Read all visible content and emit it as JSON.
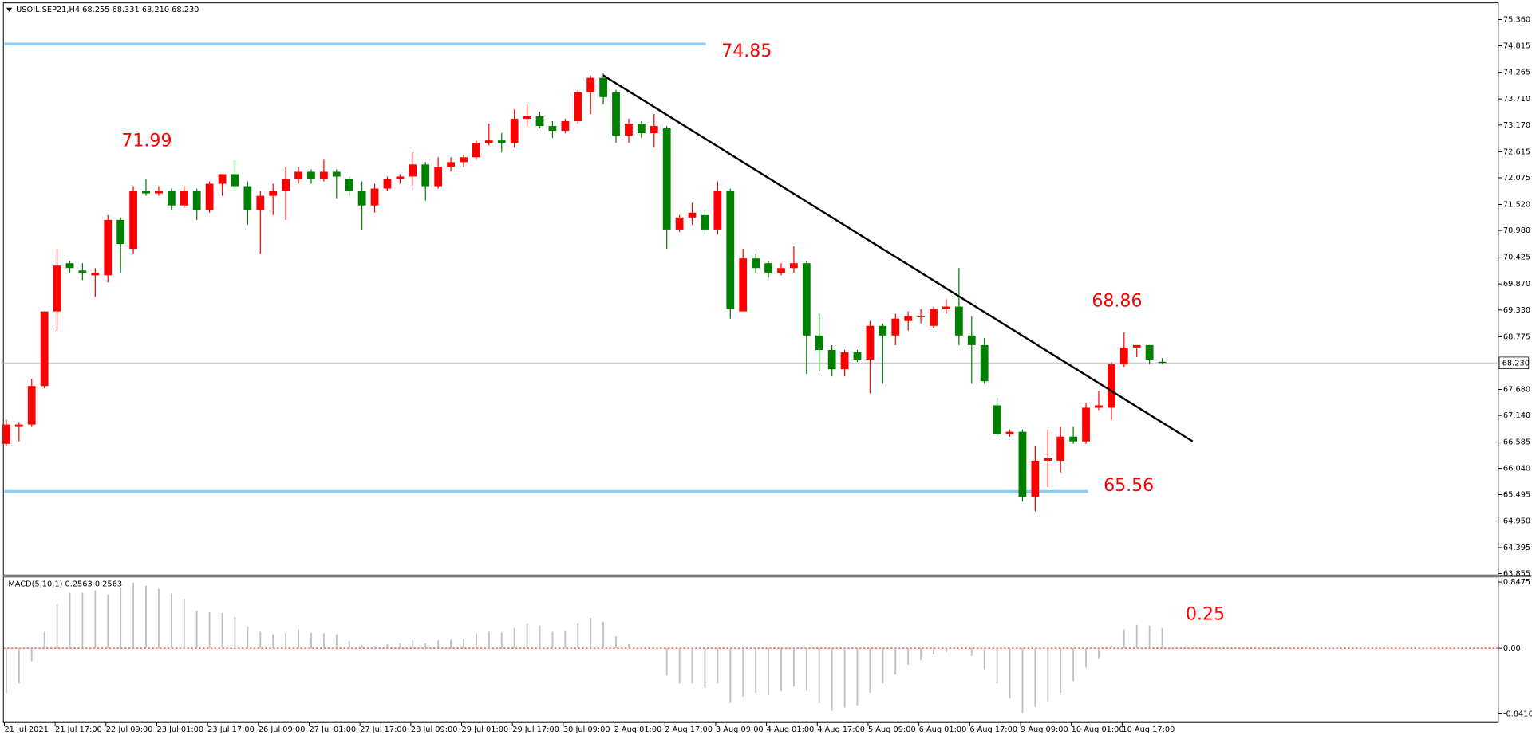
{
  "chart_data": [
    {
      "type": "candlestick",
      "title": "USOIL.SEP21,H4 68.255 68.331 68.210 68.230",
      "categories": [
        "21 Jul 2021",
        null,
        null,
        null,
        "21 Jul 17:00",
        null,
        null,
        null,
        "22 Jul 09:00",
        null,
        null,
        null,
        "23 Jul 01:00",
        null,
        null,
        null,
        "23 Jul 17:00",
        null,
        null,
        null,
        "26 Jul 09:00",
        null,
        null,
        null,
        "27 Jul 01:00",
        null,
        null,
        null,
        "27 Jul 17:00",
        null,
        null,
        null,
        "28 Jul 09:00",
        null,
        null,
        null,
        "29 Jul 01:00",
        null,
        null,
        null,
        "29 Jul 17:00",
        null,
        null,
        null,
        "30 Jul 09:00",
        null,
        null,
        null,
        "2 Aug 01:00",
        null,
        null,
        null,
        "2 Aug 17:00",
        null,
        null,
        null,
        "3 Aug 09:00",
        null,
        null,
        null,
        "4 Aug 01:00",
        null,
        null,
        null,
        "4 Aug 17:00",
        null,
        null,
        null,
        "5 Aug 09:00",
        null,
        null,
        null,
        "6 Aug 01:00",
        null,
        null,
        null,
        "6 Aug 17:00",
        null,
        null,
        null,
        "9 Aug 09:00",
        null,
        null,
        null,
        "10 Aug 01:00",
        null,
        null,
        null,
        "10 Aug 17:00",
        null,
        null,
        null
      ],
      "open": [
        66.55,
        66.9,
        66.95,
        67.75,
        69.3,
        70.3,
        70.15,
        70.05,
        70.05,
        71.2,
        70.6,
        71.8,
        71.75,
        71.8,
        71.5,
        71.8,
        71.4,
        71.95,
        72.15,
        71.9,
        71.4,
        71.7,
        71.8,
        72.05,
        72.2,
        72.05,
        72.2,
        72.05,
        71.8,
        71.5,
        71.85,
        72.05,
        72.1,
        72.35,
        71.9,
        72.3,
        72.4,
        72.5,
        72.8,
        72.85,
        72.8,
        73.3,
        73.35,
        73.15,
        73.05,
        73.25,
        73.85,
        74.15,
        73.85,
        72.95,
        73.2,
        73.0,
        73.1,
        71.0,
        71.25,
        71.3,
        71.0,
        71.8,
        69.3,
        70.4,
        70.3,
        70.1,
        70.2,
        70.3,
        68.8,
        68.5,
        68.1,
        68.45,
        68.3,
        69.0,
        68.8,
        69.1,
        69.2,
        69.0,
        69.35,
        69.4,
        68.8,
        68.6,
        67.35,
        66.75,
        66.8,
        65.45,
        66.2,
        66.2,
        66.7,
        66.6,
        67.3,
        67.3,
        68.2,
        68.55,
        68.6,
        68.255
      ],
      "high": [
        67.05,
        67.0,
        67.9,
        69.3,
        70.6,
        70.35,
        70.3,
        70.2,
        71.3,
        71.25,
        71.9,
        72.05,
        71.9,
        71.85,
        71.9,
        71.85,
        72.0,
        72.15,
        72.45,
        72.0,
        71.8,
        71.95,
        72.3,
        72.3,
        72.25,
        72.45,
        72.25,
        72.1,
        72.0,
        71.95,
        72.1,
        72.15,
        72.6,
        72.4,
        72.5,
        72.5,
        72.55,
        72.85,
        73.2,
        73.0,
        73.5,
        73.6,
        73.45,
        73.25,
        73.3,
        73.9,
        74.2,
        74.25,
        73.9,
        73.3,
        73.25,
        73.4,
        73.15,
        71.3,
        71.55,
        71.4,
        72.0,
        71.85,
        70.6,
        70.5,
        70.35,
        70.3,
        70.65,
        70.35,
        69.25,
        68.6,
        68.5,
        68.5,
        69.1,
        69.05,
        69.25,
        69.3,
        69.35,
        69.4,
        69.55,
        70.2,
        69.2,
        68.75,
        67.5,
        66.85,
        66.85,
        66.5,
        66.85,
        66.9,
        66.9,
        67.4,
        67.65,
        68.25,
        68.86,
        68.6,
        68.6,
        68.331
      ],
      "low": [
        66.5,
        66.6,
        66.9,
        67.7,
        68.9,
        70.1,
        69.95,
        69.6,
        69.9,
        70.1,
        70.5,
        71.7,
        71.7,
        71.4,
        71.45,
        71.2,
        71.35,
        71.7,
        71.8,
        71.1,
        70.5,
        71.3,
        71.2,
        71.95,
        71.95,
        72.0,
        71.65,
        71.7,
        71.0,
        71.35,
        71.8,
        71.95,
        71.9,
        71.6,
        71.85,
        72.2,
        72.3,
        72.45,
        72.75,
        72.6,
        72.7,
        73.15,
        73.1,
        72.9,
        73.0,
        73.2,
        73.4,
        73.6,
        72.8,
        72.8,
        72.9,
        72.7,
        70.6,
        70.95,
        71.1,
        70.9,
        70.9,
        69.15,
        69.3,
        70.1,
        70.0,
        70.05,
        70.1,
        68.0,
        68.05,
        67.95,
        67.95,
        68.25,
        67.6,
        67.8,
        68.6,
        68.9,
        69.05,
        68.95,
        69.25,
        68.6,
        67.8,
        67.8,
        66.7,
        66.7,
        65.35,
        65.15,
        65.65,
        65.95,
        66.55,
        66.55,
        67.25,
        67.05,
        68.15,
        68.35,
        68.2,
        68.21
      ],
      "close": [
        66.95,
        66.95,
        67.75,
        69.3,
        70.25,
        70.2,
        70.1,
        70.1,
        71.2,
        70.7,
        71.8,
        71.75,
        71.8,
        71.5,
        71.8,
        71.4,
        71.95,
        72.15,
        71.9,
        71.4,
        71.7,
        71.8,
        72.05,
        72.2,
        72.05,
        72.2,
        72.1,
        71.8,
        71.5,
        71.85,
        72.05,
        72.1,
        72.35,
        71.9,
        72.3,
        72.4,
        72.5,
        72.8,
        72.85,
        72.8,
        73.3,
        73.35,
        73.15,
        73.05,
        73.25,
        73.85,
        74.15,
        73.75,
        72.95,
        73.2,
        73.0,
        73.15,
        71.0,
        71.25,
        71.35,
        71.0,
        71.8,
        69.35,
        70.4,
        70.2,
        70.1,
        70.2,
        70.3,
        68.8,
        68.5,
        68.1,
        68.45,
        68.3,
        69.0,
        68.8,
        69.15,
        69.2,
        69.2,
        69.35,
        69.4,
        68.8,
        68.6,
        67.85,
        66.75,
        66.8,
        65.45,
        66.2,
        66.25,
        66.7,
        66.6,
        67.3,
        67.35,
        68.2,
        68.55,
        68.6,
        68.3,
        68.23
      ],
      "up_color": "#ff0000",
      "down_color": "#008000",
      "ylim": [
        63.827,
        75.705
      ],
      "yticks": [
        {
          "value": 75.36,
          "label": "75.360"
        },
        74.815,
        74.265,
        {
          "value": 73.71,
          "label": "73.710"
        },
        {
          "value": 73.17,
          "label": "73.170"
        },
        72.615,
        72.075,
        {
          "value": 71.52,
          "label": "71.520"
        },
        {
          "value": 70.98,
          "label": "70.980"
        },
        70.425,
        {
          "value": 69.87,
          "label": "69.870"
        },
        {
          "value": 69.33,
          "label": "69.330"
        },
        68.775,
        {
          "value": 67.68,
          "label": "67.680"
        },
        {
          "value": 67.14,
          "label": "67.140"
        },
        66.585,
        {
          "value": 66.04,
          "label": "66.040"
        },
        65.495,
        {
          "value": 64.95,
          "label": "64.950"
        },
        64.395,
        63.855
      ],
      "levels": [
        74.85,
        65.56
      ],
      "level_color": "#87cef0",
      "annotations": [
        "71.99",
        "68.86"
      ],
      "trendline": {
        "x": [
          47,
          93.4
        ],
        "y": [
          74.2,
          66.6
        ],
        "color": "#000000"
      },
      "last_price": {
        "value": 68.23,
        "label": "68.230"
      }
    },
    {
      "type": "bar",
      "title": "MACD(5,10,1) 0.2563 0.2563",
      "values": [
        -0.57,
        -0.45,
        -0.17,
        0.21,
        0.56,
        0.71,
        0.71,
        0.74,
        0.69,
        0.78,
        0.84,
        0.8,
        0.76,
        0.7,
        0.63,
        0.48,
        0.46,
        0.45,
        0.4,
        0.28,
        0.21,
        0.18,
        0.19,
        0.24,
        0.2,
        0.19,
        0.18,
        0.09,
        0.04,
        0.03,
        0.05,
        0.06,
        0.1,
        0.06,
        0.1,
        0.11,
        0.12,
        0.19,
        0.21,
        0.2,
        0.26,
        0.31,
        0.29,
        0.21,
        0.22,
        0.32,
        0.39,
        0.34,
        0.15,
        0.05,
        0.01,
        0.0,
        -0.35,
        -0.45,
        -0.45,
        -0.51,
        -0.45,
        -0.7,
        -0.62,
        -0.57,
        -0.6,
        -0.55,
        -0.49,
        -0.55,
        -0.7,
        -0.8,
        -0.76,
        -0.73,
        -0.57,
        -0.45,
        -0.34,
        -0.21,
        -0.15,
        -0.08,
        -0.05,
        0.0,
        -0.1,
        -0.27,
        -0.45,
        -0.64,
        -0.83,
        -0.75,
        -0.68,
        -0.57,
        -0.42,
        -0.25,
        -0.14,
        0.04,
        0.24,
        0.3,
        0.29,
        0.2563
      ],
      "color": "#c0c0c0",
      "ylim": [
        -0.95,
        0.9125
      ],
      "yticks": [
        0.8475,
        {
          "value": 0,
          "label": "0.00"
        },
        -0.8416
      ],
      "annotations": [
        "0.25"
      ]
    }
  ]
}
